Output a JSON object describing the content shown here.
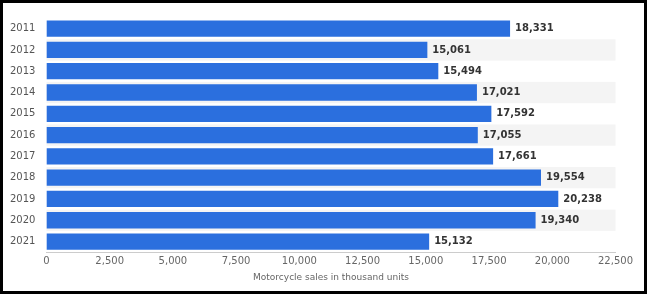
{
  "chart_data": {
    "type": "bar",
    "orientation": "horizontal",
    "categories": [
      "2011",
      "2012",
      "2013",
      "2014",
      "2015",
      "2016",
      "2017",
      "2018",
      "2019",
      "2020",
      "2021"
    ],
    "values": [
      18331,
      15061,
      15494,
      17021,
      17592,
      17055,
      17661,
      19554,
      20238,
      19340,
      15132
    ],
    "value_labels": [
      "18,331",
      "15,061",
      "15,494",
      "17,021",
      "17,592",
      "17,055",
      "17,661",
      "19,554",
      "20,238",
      "19,340",
      "15,132"
    ],
    "data_labels": true,
    "color": "#2b6fde",
    "x_label": "Motorcycle sales in thousand units",
    "xlim": [
      0,
      22500
    ],
    "xticks": [
      0,
      {
        "value": 2500,
        "label": "2,500"
      },
      {
        "value": 5000,
        "label": "5,000"
      },
      {
        "value": 7500,
        "label": "7,500"
      },
      {
        "value": 10000,
        "label": "10,000"
      },
      {
        "value": 12500,
        "label": "12,500"
      },
      {
        "value": 15000,
        "label": "15,000"
      },
      {
        "value": 17500,
        "label": "17,500"
      },
      {
        "value": 20000,
        "label": "20,000"
      },
      {
        "value": 22500,
        "label": "22,500"
      }
    ],
    "grid": false
  }
}
